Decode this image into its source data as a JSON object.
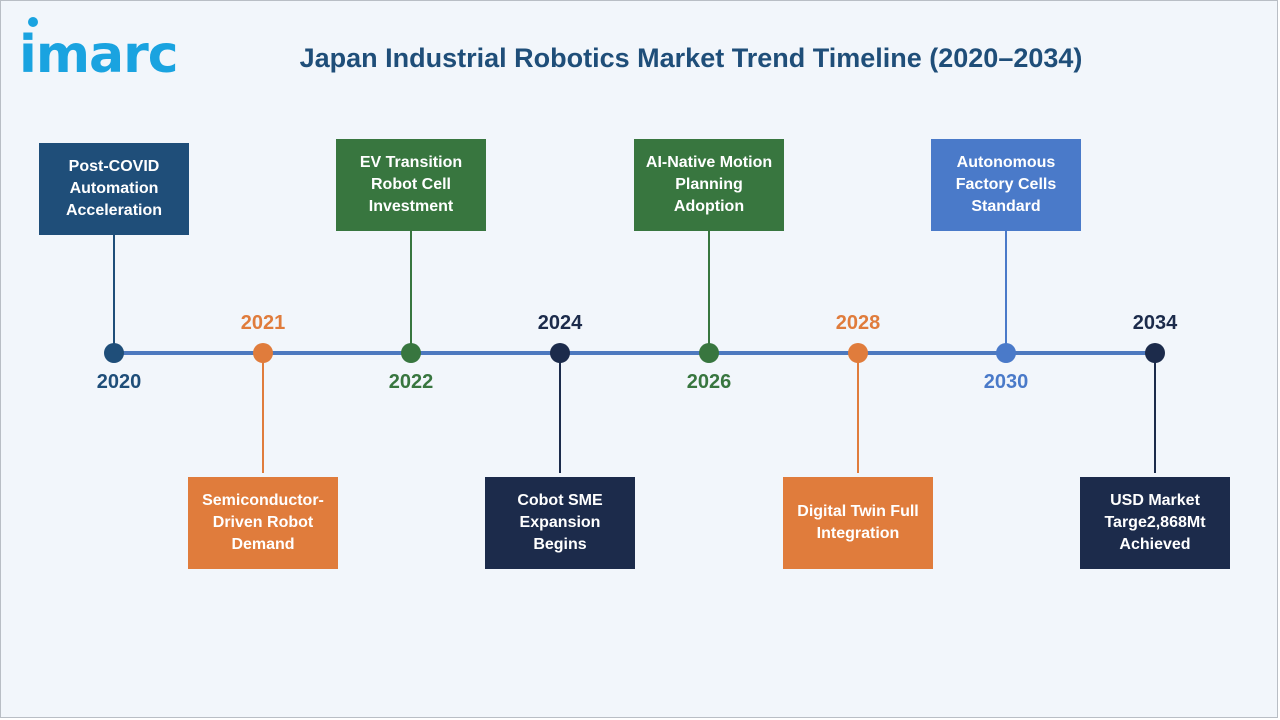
{
  "logo": {
    "text": "imarc"
  },
  "title": "Japan Industrial Robotics Market Trend Timeline (2020–2034)",
  "colors": {
    "dark_blue": "#1f4e79",
    "orange": "#e07c3c",
    "green": "#38763f",
    "navy": "#1c2b4b",
    "light_blue": "#4a7ac9",
    "axis": "#4d79bf",
    "logo": "#1aa3e0"
  },
  "milestones": [
    {
      "year": "2020",
      "label": "Post-COVID Automation Acceleration",
      "color": "#1f4e79"
    },
    {
      "year": "2021",
      "label": "Semiconductor-Driven Robot Demand",
      "color": "#e07c3c"
    },
    {
      "year": "2022",
      "label": "EV Transition Robot Cell Investment",
      "color": "#38763f"
    },
    {
      "year": "2024",
      "label": "Cobot SME Expansion Begins",
      "color": "#1c2b4b"
    },
    {
      "year": "2026",
      "label": "AI-Native Motion Planning Adoption",
      "color": "#38763f"
    },
    {
      "year": "2028",
      "label": "Digital Twin Full Integration",
      "color": "#e07c3c"
    },
    {
      "year": "2030",
      "label": "Autonomous Factory Cells Standard",
      "color": "#4a7ac9"
    },
    {
      "year": "2034",
      "label": "USD Market Targe2,868Mt Achieved",
      "color": "#1c2b4b"
    }
  ]
}
